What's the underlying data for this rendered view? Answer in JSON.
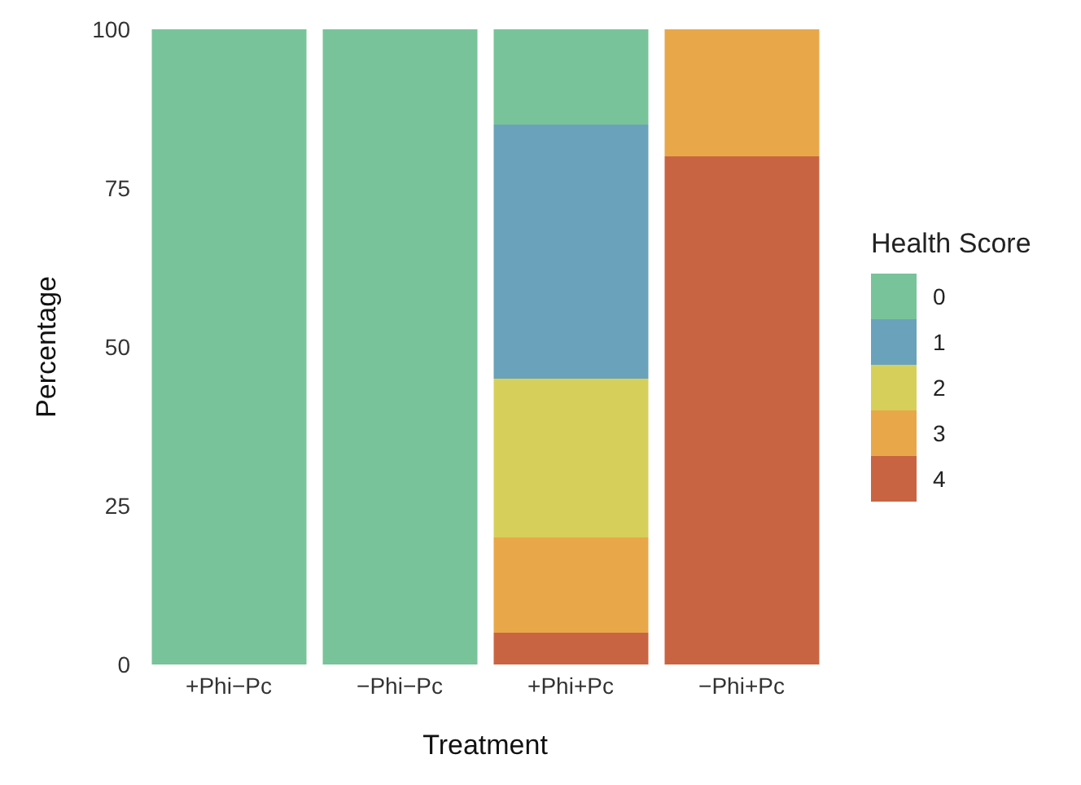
{
  "chart_data": {
    "type": "bar",
    "stacked": true,
    "xlabel": "Treatment",
    "ylabel": "Percentage",
    "legend_title": "Health Score",
    "legend": "right",
    "grid": false,
    "categories": [
      "+Phi−Pc",
      "−Phi−Pc",
      "+Phi+Pc",
      "−Phi+Pc"
    ],
    "ylim": [
      0,
      100
    ],
    "yticks": [
      0,
      25,
      50,
      75,
      100
    ],
    "series": [
      {
        "name": "4",
        "color": "#c96443",
        "values": [
          0,
          0,
          5,
          80
        ]
      },
      {
        "name": "3",
        "color": "#e8a84a",
        "values": [
          0,
          0,
          15,
          20
        ]
      },
      {
        "name": "2",
        "color": "#d6d05a",
        "values": [
          0,
          0,
          25,
          0
        ]
      },
      {
        "name": "1",
        "color": "#6aa2bb",
        "values": [
          0,
          0,
          40,
          0
        ]
      },
      {
        "name": "0",
        "color": "#78c39a",
        "values": [
          100,
          100,
          15,
          0
        ]
      }
    ]
  }
}
